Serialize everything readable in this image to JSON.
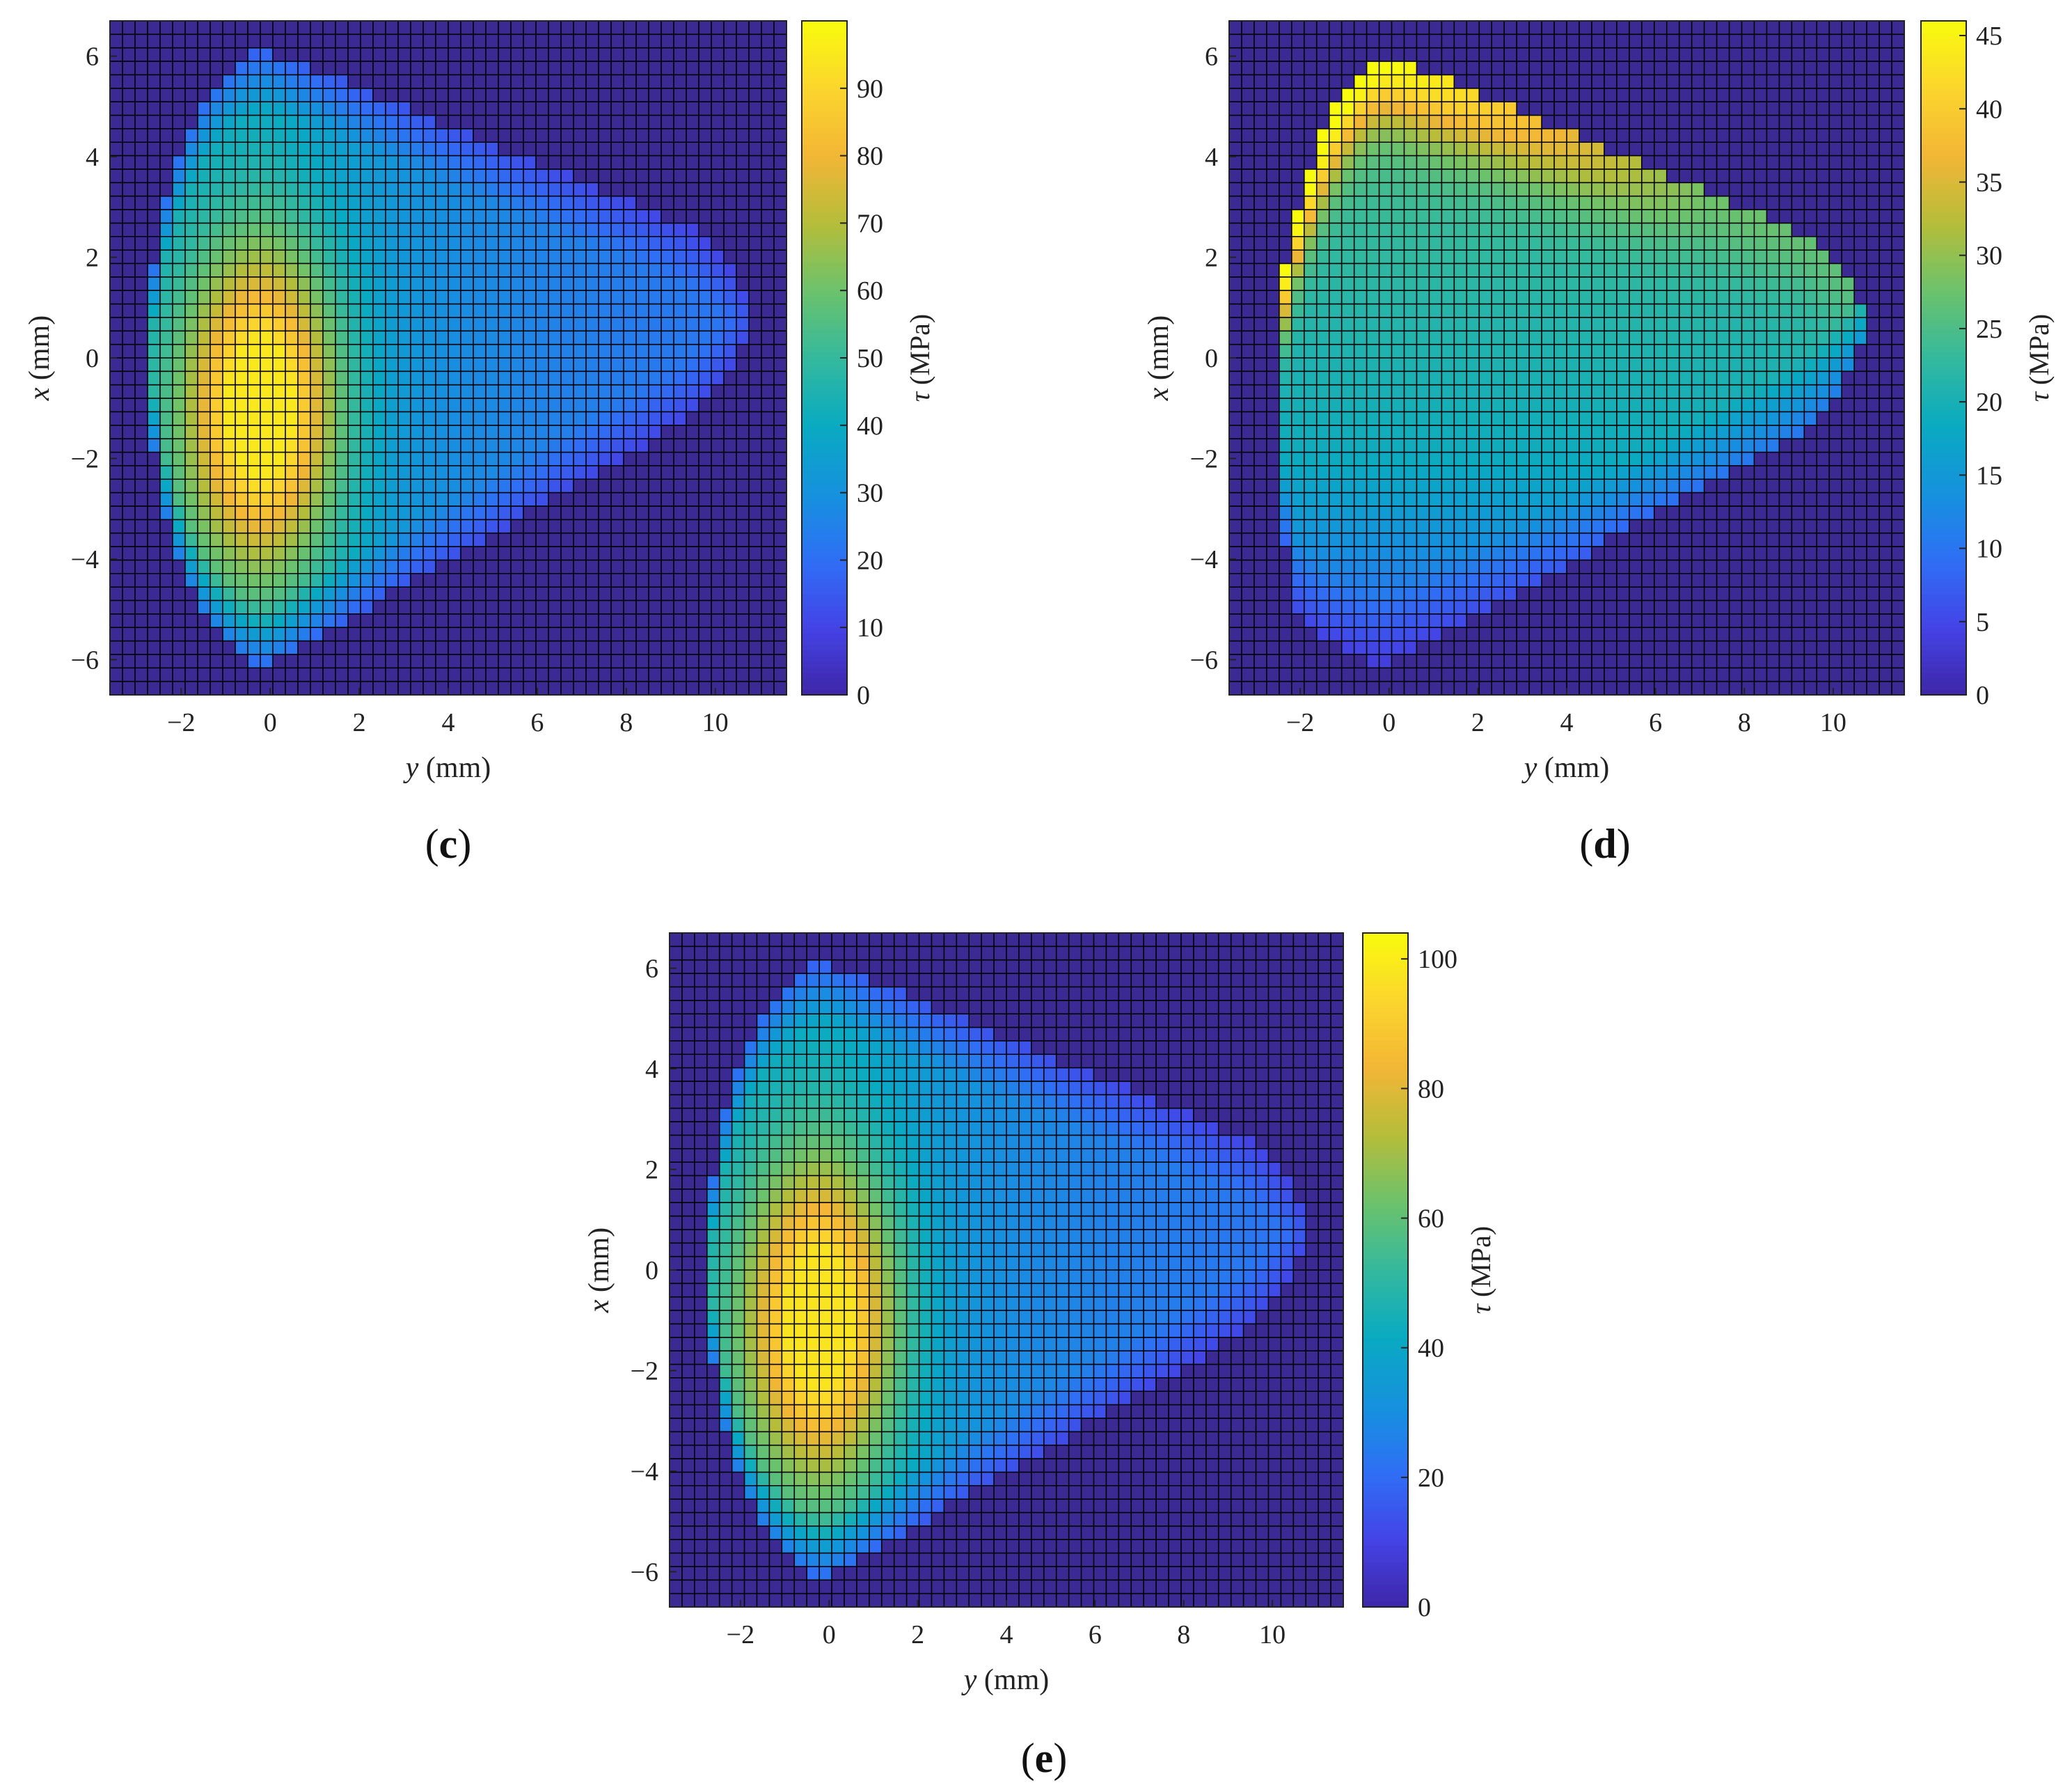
{
  "chart_data": [
    {
      "type": "heatmap",
      "label": "c",
      "xlabel_var": "y",
      "xlabel_unit": " (mm)",
      "ylabel_var": "x",
      "ylabel_unit": " (mm)",
      "xlim": [
        -3.6,
        11.6
      ],
      "ylim": [
        -6.7,
        6.7
      ],
      "xticks": [
        "−2",
        "0",
        "2",
        "4",
        "6",
        "8",
        "10"
      ],
      "xtick_values": [
        -2,
        0,
        2,
        4,
        6,
        8,
        10
      ],
      "yticks": [
        "6",
        "4",
        "2",
        "0",
        "−2",
        "−4",
        "−6"
      ],
      "ytick_values": [
        6,
        4,
        2,
        0,
        -2,
        -4,
        -6
      ],
      "colorbar_label_var": "τ",
      "colorbar_label_unit": " (MPa)",
      "colorbar_range": [
        0,
        100
      ],
      "colorbar_ticks": [
        "0",
        "10",
        "20",
        "30",
        "40",
        "50",
        "60",
        "70",
        "80",
        "90"
      ],
      "colorbar_tick_values": [
        0,
        10,
        20,
        30,
        40,
        50,
        60,
        70,
        80,
        90
      ],
      "peak_value": 95,
      "peak_location": {
        "y": -0.2,
        "x": -1.0
      }
    },
    {
      "type": "heatmap",
      "label": "d",
      "xlabel_var": "y",
      "xlabel_unit": " (mm)",
      "ylabel_var": "x",
      "ylabel_unit": " (mm)",
      "xlim": [
        -3.6,
        11.6
      ],
      "ylim": [
        -6.7,
        6.7
      ],
      "xticks": [
        "−2",
        "0",
        "2",
        "4",
        "6",
        "8",
        "10"
      ],
      "xtick_values": [
        -2,
        0,
        2,
        4,
        6,
        8,
        10
      ],
      "yticks": [
        "6",
        "4",
        "2",
        "0",
        "−2",
        "−4",
        "−6"
      ],
      "ytick_values": [
        6,
        4,
        2,
        0,
        -2,
        -4,
        -6
      ],
      "colorbar_label_var": "τ",
      "colorbar_label_unit": " (MPa)",
      "colorbar_range": [
        0,
        46
      ],
      "colorbar_ticks": [
        "0",
        "5",
        "10",
        "15",
        "20",
        "25",
        "30",
        "35",
        "40",
        "45"
      ],
      "colorbar_tick_values": [
        0,
        5,
        10,
        15,
        20,
        25,
        30,
        35,
        40,
        45
      ],
      "peak_value": 44,
      "peak_location": {
        "y": 0.0,
        "x": 5.2
      }
    },
    {
      "type": "heatmap",
      "label": "e",
      "xlabel_var": "y",
      "xlabel_unit": " (mm)",
      "ylabel_var": "x",
      "ylabel_unit": " (mm)",
      "xlim": [
        -3.6,
        11.6
      ],
      "ylim": [
        -6.7,
        6.7
      ],
      "xticks": [
        "−2",
        "0",
        "2",
        "4",
        "6",
        "8",
        "10"
      ],
      "xtick_values": [
        -2,
        0,
        2,
        4,
        6,
        8,
        10
      ],
      "yticks": [
        "6",
        "4",
        "2",
        "0",
        "−2",
        "−4",
        "−6"
      ],
      "ytick_values": [
        6,
        4,
        2,
        0,
        -2,
        -4,
        -6
      ],
      "colorbar_label_var": "τ",
      "colorbar_label_unit": " (MPa)",
      "colorbar_range": [
        0,
        104
      ],
      "colorbar_ticks": [
        "0",
        "20",
        "40",
        "60",
        "80",
        "100"
      ],
      "colorbar_tick_values": [
        0,
        20,
        40,
        60,
        80,
        100
      ],
      "peak_value": 98,
      "peak_location": {
        "y": -0.2,
        "x": -1.0
      }
    }
  ],
  "colors": {
    "background_cell": "#3b2a94",
    "grid_line": "#000000",
    "colormap": [
      "#3e26a8",
      "#4443e6",
      "#2f6ff5",
      "#1592dd",
      "#09aac2",
      "#34b99d",
      "#6cc26c",
      "#b5bd3a",
      "#f3b636",
      "#fbd52d",
      "#f9fb0e"
    ]
  }
}
